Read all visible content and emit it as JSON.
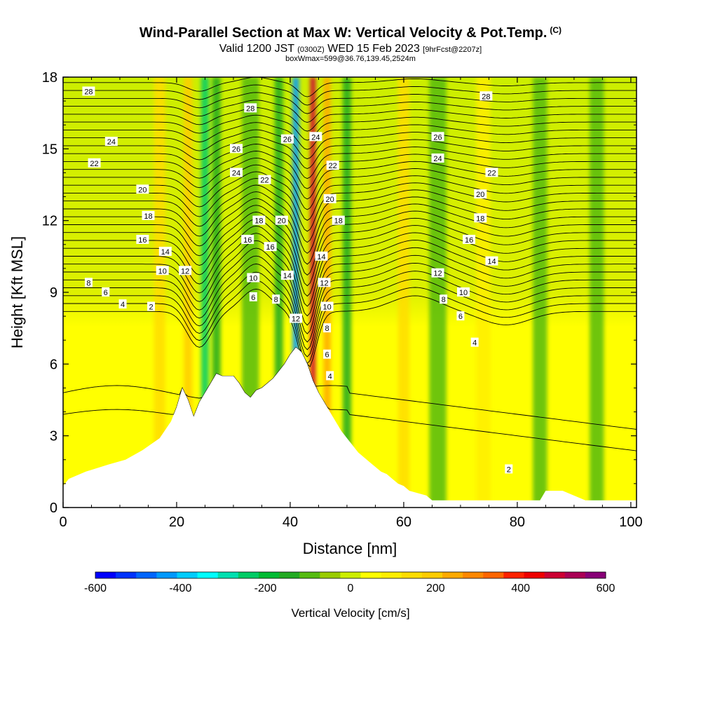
{
  "header": {
    "title": "Wind-Parallel Section at Max W: Vertical Velocity & Pot.Temp.",
    "copyright": "(C)",
    "valid_prefix": "Valid 1200 JST",
    "valid_utc": "(0300Z)",
    "valid_date": "WED 15 Feb 2023",
    "forecast": "[9hrFcst@2207z]",
    "box_info": "boxWmax=599@36.76,139.45,2524m"
  },
  "chart_data": {
    "type": "heatmap",
    "xlabel": "Distance [nm]",
    "ylabel": "Height [Kft MSL]",
    "xlim": [
      0,
      101
    ],
    "ylim": [
      0,
      18
    ],
    "x_ticks": [
      0,
      20,
      40,
      60,
      80,
      100
    ],
    "y_ticks": [
      0,
      3,
      6,
      9,
      12,
      15,
      18
    ],
    "colorbar": {
      "title": "Vertical Velocity [cm/s]",
      "min": -600,
      "max": 600,
      "step": 50,
      "tick_labels": [
        "-600",
        "-400",
        "-200",
        "0",
        "200",
        "400",
        "600"
      ],
      "tick_values": [
        -600,
        -400,
        -200,
        0,
        200,
        400,
        600
      ],
      "colors": [
        "#0000ff",
        "#0033ff",
        "#0066ff",
        "#0099ff",
        "#00ccff",
        "#00ffff",
        "#00e0b0",
        "#00cc66",
        "#00bb33",
        "#22aa22",
        "#55bb11",
        "#99cc00",
        "#ccee00",
        "#ffff00",
        "#ffee00",
        "#ffdd00",
        "#ffcc00",
        "#ffaa00",
        "#ff8800",
        "#ff6600",
        "#ff2200",
        "#ee0000",
        "#cc0033",
        "#aa0055",
        "#880077"
      ]
    },
    "terrain_profile": {
      "x": [
        0,
        1,
        4,
        8,
        11,
        14,
        17,
        19,
        20,
        21,
        22,
        23,
        24,
        25,
        26,
        27,
        28,
        30,
        31,
        32,
        33,
        34,
        35,
        36,
        37,
        38,
        39,
        40,
        41,
        42,
        43,
        44,
        45,
        46,
        47,
        48,
        49,
        50,
        51,
        52,
        53,
        54,
        55,
        56,
        57,
        58,
        59,
        60,
        61,
        64,
        65,
        70,
        75,
        80,
        84,
        85,
        88,
        92,
        101
      ],
      "y": [
        0.9,
        1.2,
        1.5,
        1.8,
        2.0,
        2.4,
        2.9,
        3.6,
        4.2,
        5.0,
        4.5,
        3.8,
        4.4,
        4.8,
        5.2,
        5.6,
        5.5,
        5.5,
        5.2,
        4.8,
        4.6,
        4.9,
        5.0,
        5.2,
        5.4,
        5.7,
        6.0,
        6.4,
        6.7,
        6.5,
        6.0,
        5.3,
        4.8,
        4.4,
        4.0,
        3.6,
        3.2,
        2.9,
        2.6,
        2.3,
        2.1,
        1.9,
        1.7,
        1.5,
        1.4,
        1.2,
        1.0,
        0.9,
        0.7,
        0.5,
        0.3,
        0.3,
        0.3,
        0.3,
        0.3,
        0.7,
        0.7,
        0.3,
        0.3
      ]
    },
    "velocity_features": [
      {
        "x": 17,
        "width": 2.0,
        "value": 150
      },
      {
        "x": 22,
        "width": 1.5,
        "value": 200
      },
      {
        "x": 25,
        "width": 1.4,
        "value": -250
      },
      {
        "x": 27,
        "width": 1.5,
        "value": -150
      },
      {
        "x": 33,
        "width": 3.0,
        "value": -80
      },
      {
        "x": 38,
        "width": 1.5,
        "value": -150
      },
      {
        "x": 41,
        "width": 1.2,
        "value": -450
      },
      {
        "x": 44,
        "width": 1.0,
        "value": 500
      },
      {
        "x": 46.5,
        "width": 1.3,
        "value": 250
      },
      {
        "x": 50,
        "width": 1.5,
        "value": -150
      },
      {
        "x": 60,
        "width": 2.0,
        "value": 150
      },
      {
        "x": 66,
        "width": 3.0,
        "value": -100
      },
      {
        "x": 74,
        "width": 2.5,
        "value": 100
      },
      {
        "x": 84,
        "width": 2.5,
        "value": -100
      },
      {
        "x": 94,
        "width": 2.5,
        "value": -80
      }
    ],
    "contour_labels": [
      {
        "text": "28",
        "x": 4.5,
        "y": 17.4
      },
      {
        "text": "24",
        "x": 8.5,
        "y": 15.3
      },
      {
        "text": "22",
        "x": 5.5,
        "y": 14.4
      },
      {
        "text": "20",
        "x": 14,
        "y": 13.3
      },
      {
        "text": "18",
        "x": 15,
        "y": 12.2
      },
      {
        "text": "16",
        "x": 14,
        "y": 11.2
      },
      {
        "text": "14",
        "x": 18,
        "y": 10.7
      },
      {
        "text": "12",
        "x": 21.5,
        "y": 9.9
      },
      {
        "text": "10",
        "x": 17.5,
        "y": 9.9
      },
      {
        "text": "8",
        "x": 4.5,
        "y": 9.4
      },
      {
        "text": "6",
        "x": 7.5,
        "y": 9.0
      },
      {
        "text": "4",
        "x": 10.5,
        "y": 8.5
      },
      {
        "text": "2",
        "x": 15.5,
        "y": 8.4
      },
      {
        "text": "28",
        "x": 33,
        "y": 16.7
      },
      {
        "text": "26",
        "x": 30.5,
        "y": 15.0
      },
      {
        "text": "24",
        "x": 30.5,
        "y": 14.0
      },
      {
        "text": "22",
        "x": 35.5,
        "y": 13.7
      },
      {
        "text": "18",
        "x": 34.5,
        "y": 12.0
      },
      {
        "text": "16",
        "x": 32.5,
        "y": 11.2
      },
      {
        "text": "16",
        "x": 36.5,
        "y": 10.9
      },
      {
        "text": "10",
        "x": 33.5,
        "y": 9.6
      },
      {
        "text": "6",
        "x": 33.5,
        "y": 8.8
      },
      {
        "text": "8",
        "x": 37.5,
        "y": 8.7
      },
      {
        "text": "20",
        "x": 38.5,
        "y": 12.0
      },
      {
        "text": "14",
        "x": 39.5,
        "y": 9.7
      },
      {
        "text": "12",
        "x": 41,
        "y": 7.9
      },
      {
        "text": "26",
        "x": 39.5,
        "y": 15.4
      },
      {
        "text": "24",
        "x": 44.5,
        "y": 15.5
      },
      {
        "text": "22",
        "x": 47.5,
        "y": 14.3
      },
      {
        "text": "20",
        "x": 47,
        "y": 12.9
      },
      {
        "text": "18",
        "x": 48.5,
        "y": 12.0
      },
      {
        "text": "14",
        "x": 45.5,
        "y": 10.5
      },
      {
        "text": "12",
        "x": 46,
        "y": 9.4
      },
      {
        "text": "10",
        "x": 46.5,
        "y": 8.4
      },
      {
        "text": "8",
        "x": 46.5,
        "y": 7.5
      },
      {
        "text": "6",
        "x": 46.5,
        "y": 6.4
      },
      {
        "text": "4",
        "x": 47,
        "y": 5.5
      },
      {
        "text": "28",
        "x": 74.5,
        "y": 17.2
      },
      {
        "text": "26",
        "x": 66,
        "y": 15.5
      },
      {
        "text": "24",
        "x": 66,
        "y": 14.6
      },
      {
        "text": "22",
        "x": 75.5,
        "y": 14.0
      },
      {
        "text": "20",
        "x": 73.5,
        "y": 13.1
      },
      {
        "text": "18",
        "x": 73.5,
        "y": 12.1
      },
      {
        "text": "16",
        "x": 71.5,
        "y": 11.2
      },
      {
        "text": "14",
        "x": 75.5,
        "y": 10.3
      },
      {
        "text": "12",
        "x": 66,
        "y": 9.8
      },
      {
        "text": "10",
        "x": 70.5,
        "y": 9.0
      },
      {
        "text": "8",
        "x": 67,
        "y": 8.7
      },
      {
        "text": "6",
        "x": 70,
        "y": 8.0
      },
      {
        "text": "4",
        "x": 72.5,
        "y": 6.9
      },
      {
        "text": "2",
        "x": 78.5,
        "y": 1.6
      }
    ]
  }
}
